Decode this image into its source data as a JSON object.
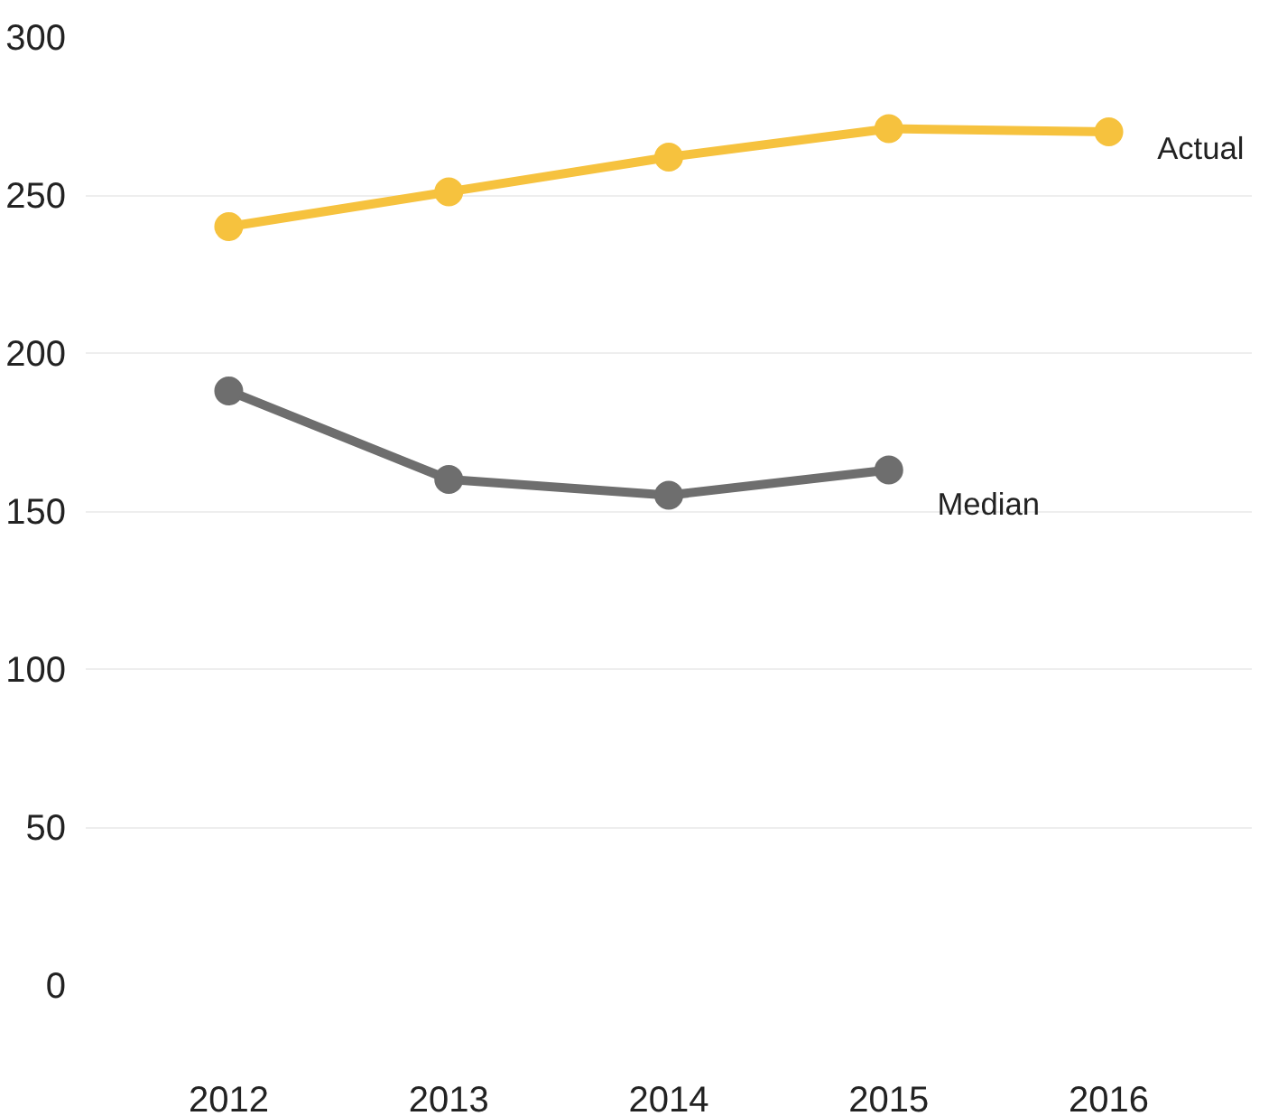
{
  "chart_data": {
    "type": "line",
    "categories": [
      "2012",
      "2013",
      "2014",
      "2015",
      "2016"
    ],
    "series": [
      {
        "name": "Actual",
        "color": "#f6c23e",
        "values": [
          240,
          251,
          262,
          271,
          270
        ]
      },
      {
        "name": "Median",
        "color": "#6e6e6e",
        "values": [
          188,
          160,
          155,
          163,
          null
        ]
      }
    ],
    "ylim": [
      0,
      300
    ],
    "yticks": [
      0,
      50,
      100,
      150,
      200,
      250,
      300
    ],
    "grid": "y",
    "marker": "circle",
    "line_style": "solid"
  }
}
